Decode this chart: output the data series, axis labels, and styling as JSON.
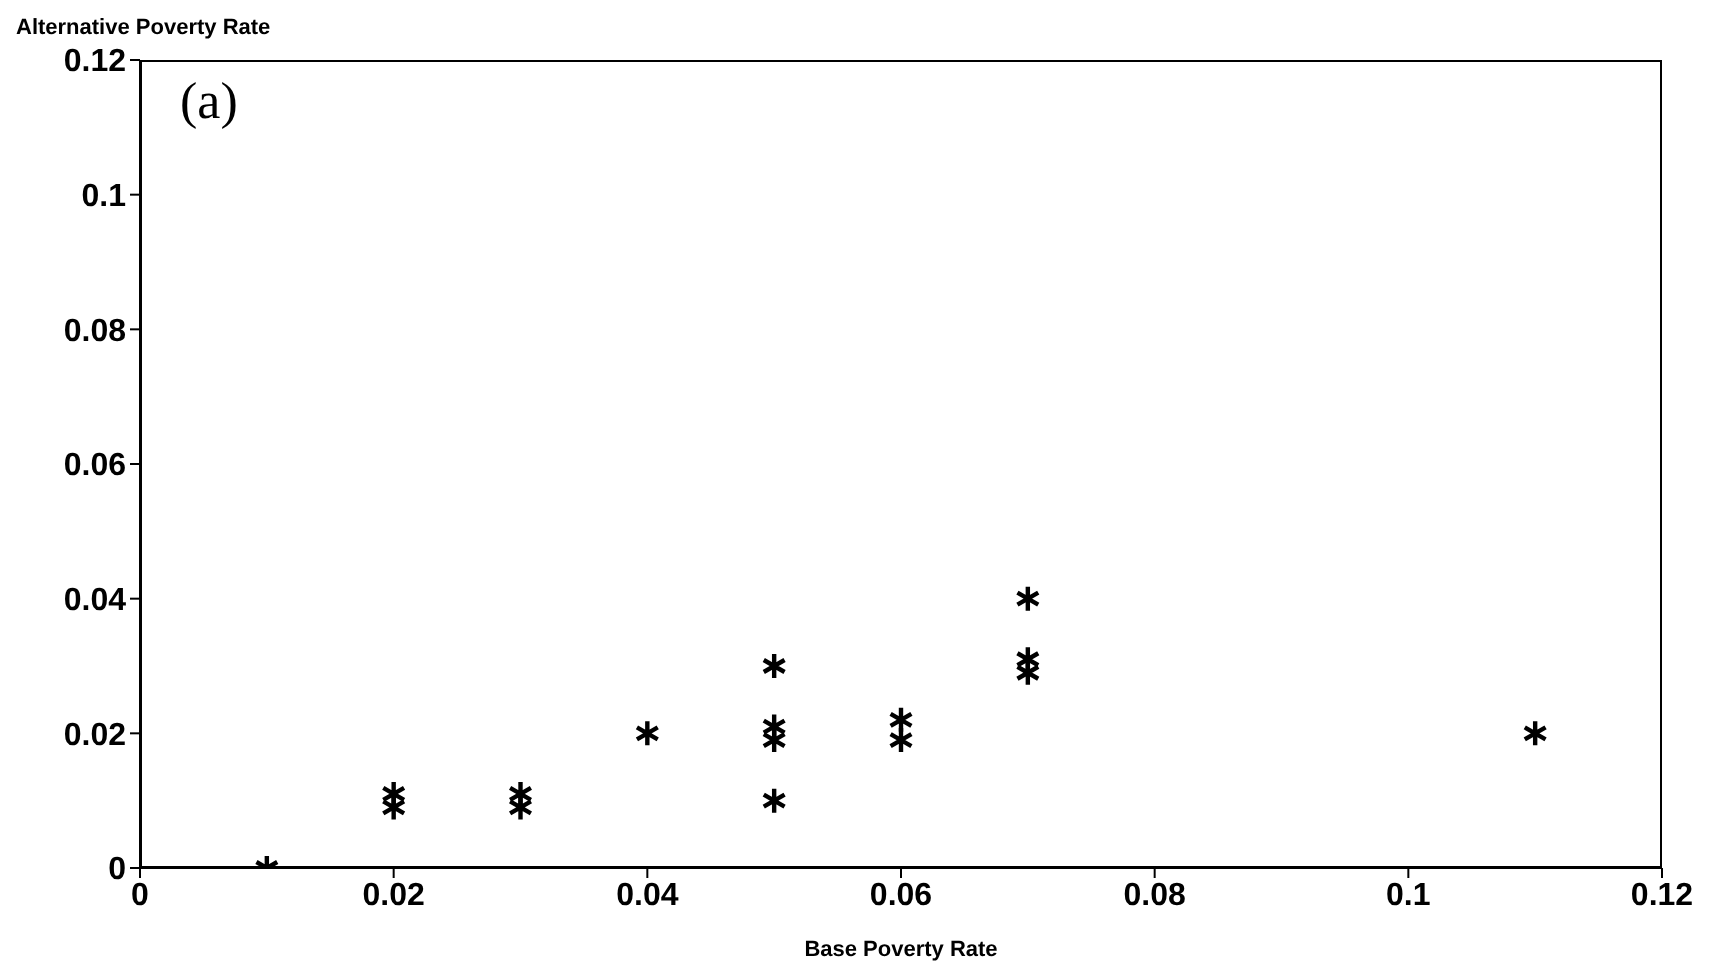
{
  "chart_data": {
    "type": "scatter",
    "xlabel": "Base Poverty Rate",
    "ylabel": "Alternative Poverty Rate",
    "annotations": [
      "(a)"
    ],
    "x": [
      0.01,
      0.02,
      0.02,
      0.03,
      0.03,
      0.04,
      0.05,
      0.05,
      0.05,
      0.05,
      0.06,
      0.06,
      0.07,
      0.07,
      0.07,
      0.11
    ],
    "values": [
      0,
      0.009,
      0.011,
      0.009,
      0.011,
      0.02,
      0.03,
      0.019,
      0.021,
      0.01,
      0.019,
      0.022,
      0.04,
      0.029,
      0.031,
      0.02
    ],
    "color": "#000000",
    "marker": "cross",
    "grid": false,
    "legend": false,
    "xlim": [
      0,
      0.12
    ],
    "xticks": [
      0,
      0.02,
      0.04,
      0.06,
      0.08,
      0.1,
      0.12
    ],
    "ylim": [
      0,
      0.12
    ],
    "yticks": [
      0,
      0.02,
      0.04,
      0.06,
      0.08,
      0.1,
      0.12
    ]
  }
}
